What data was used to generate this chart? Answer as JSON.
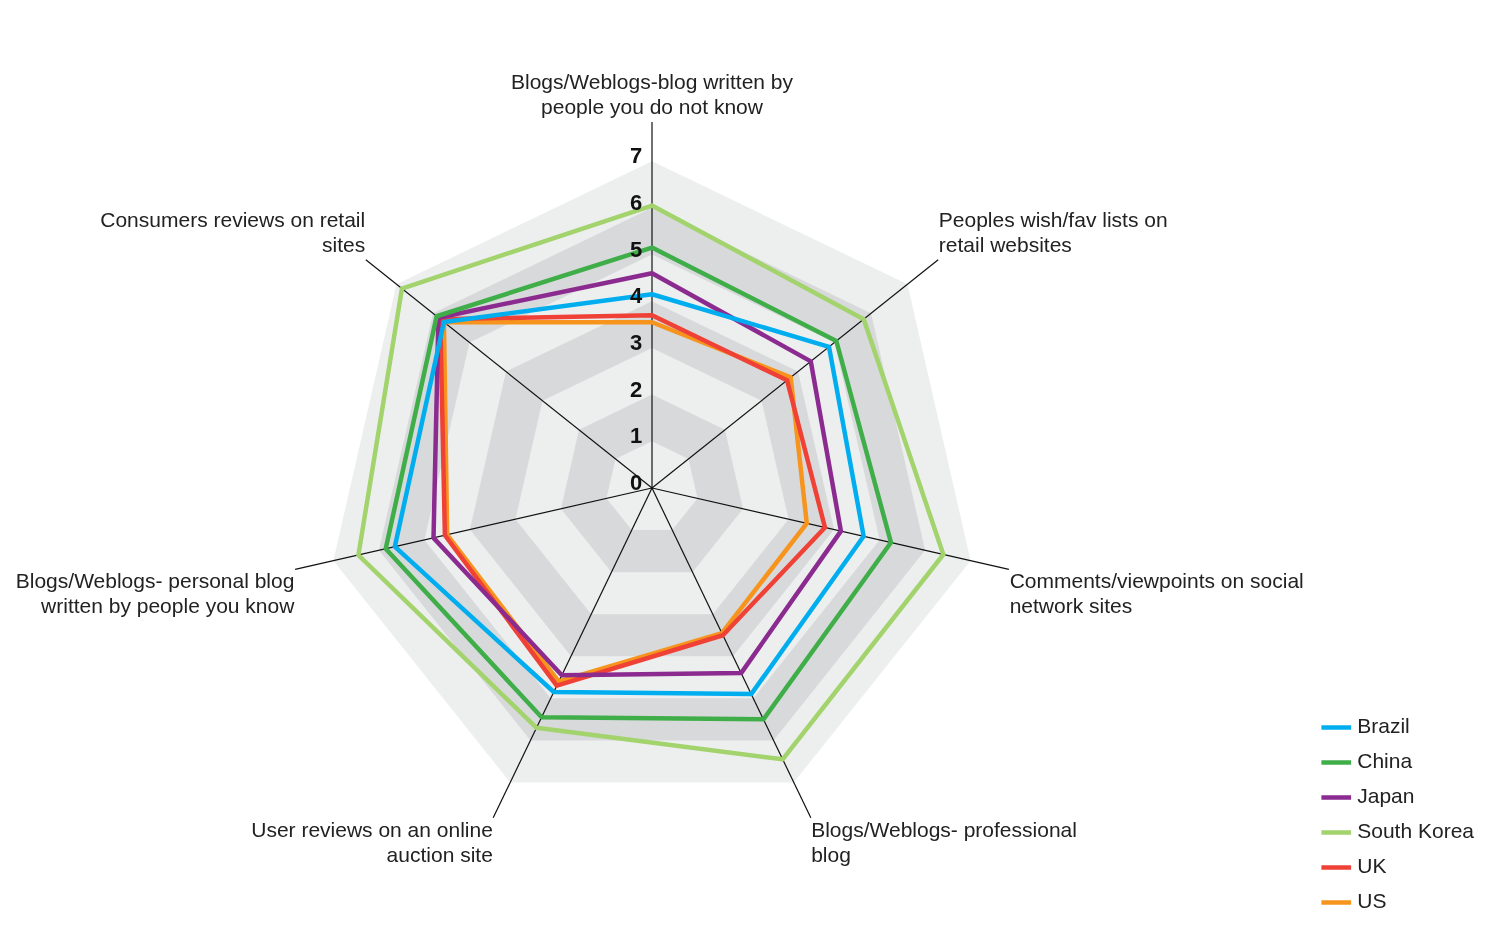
{
  "chart_data": {
    "type": "radar",
    "categories": [
      "Blogs/Weblogs-blog written by people you do not know",
      "Peoples wish/fav lists on retail websites",
      "Comments/viewpoints on social network sites",
      "Blogs/Weblogs- professional blog",
      "User reviews on an online auction site",
      "Blogs/Weblogs- personal blog written by people you know",
      "Consumers reviews on retail sites"
    ],
    "series": [
      {
        "name": "Brazil",
        "color": "#00aeef",
        "values": [
          4.15,
          4.85,
          4.65,
          4.9,
          4.85,
          5.65,
          5.7
        ]
      },
      {
        "name": "China",
        "color": "#3fae49",
        "values": [
          5.15,
          5.05,
          5.25,
          5.5,
          5.45,
          5.85,
          5.9
        ]
      },
      {
        "name": "Japan",
        "color": "#8b2a8f",
        "values": [
          4.6,
          4.35,
          4.15,
          4.4,
          4.45,
          4.8,
          5.85
        ]
      },
      {
        "name": "South Korea",
        "color": "#a3d36d",
        "values": [
          6.05,
          5.8,
          6.4,
          6.45,
          5.7,
          6.45,
          6.85
        ]
      },
      {
        "name": "UK",
        "color": "#ef4136",
        "values": [
          3.7,
          3.7,
          3.8,
          3.5,
          4.7,
          4.55,
          5.8
        ]
      },
      {
        "name": "US",
        "color": "#f7941d",
        "values": [
          3.55,
          3.8,
          3.4,
          3.45,
          4.6,
          4.5,
          5.7
        ]
      }
    ],
    "ylim": [
      0,
      7
    ],
    "yticks": [
      0,
      1,
      2,
      3,
      4,
      5,
      6,
      7
    ],
    "grid": true,
    "legend": "bottom right",
    "marker": "none",
    "line_style": "solid"
  }
}
